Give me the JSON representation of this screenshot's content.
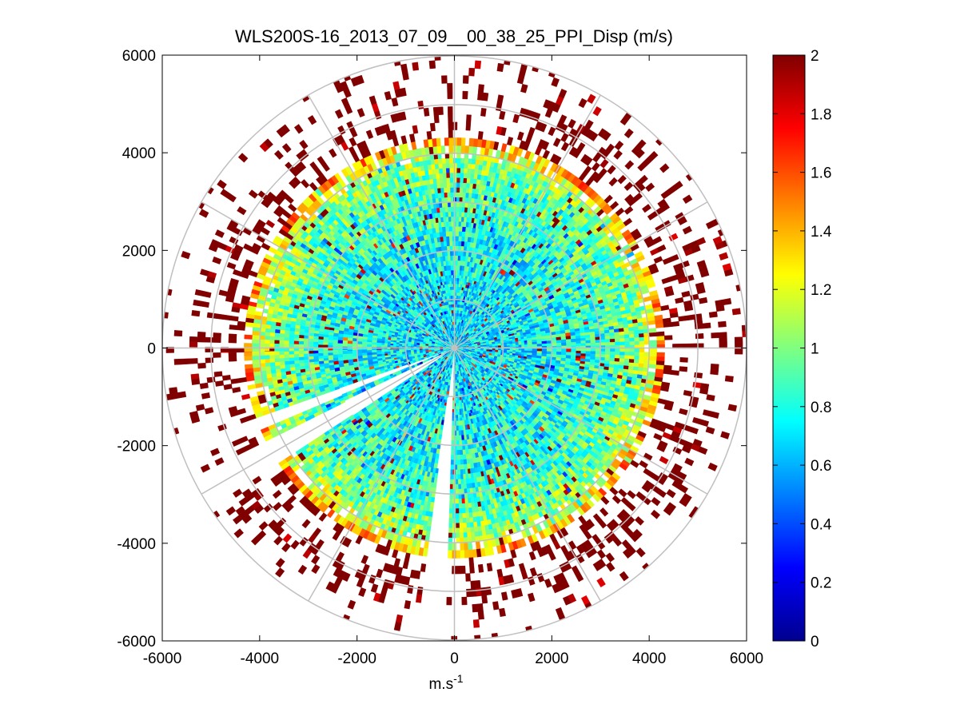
{
  "chart_data": {
    "type": "heatmap",
    "subtype": "polar-ppi",
    "title": "WLS200S-16_2013_07_09__00_38_25_PPI_Disp (m/s)",
    "xlabel_base": "m.s",
    "xlabel_sup": "-1",
    "ylabel": "",
    "xlim": [
      -6000,
      6000
    ],
    "ylim": [
      -6000,
      6000
    ],
    "xticks": [
      -6000,
      -4000,
      -2000,
      0,
      2000,
      4000,
      6000
    ],
    "yticks": [
      -6000,
      -4000,
      -2000,
      0,
      2000,
      4000,
      6000
    ],
    "xtick_labels": [
      "-6000",
      "-4000",
      "-2000",
      "0",
      "2000",
      "4000",
      "6000"
    ],
    "ytick_labels": [
      "-6000",
      "-4000",
      "-2000",
      "0",
      "2000",
      "4000",
      "6000"
    ],
    "polar_grid": {
      "ring_radii": [
        1000,
        2000,
        3000,
        4000,
        5000,
        6000
      ],
      "spoke_angles_deg": [
        0,
        30,
        60,
        90,
        120,
        150,
        180,
        210,
        240,
        270,
        300,
        330
      ],
      "color": "#c0c0c0"
    },
    "colorbar": {
      "colormap": "jet",
      "clim": [
        0,
        2
      ],
      "ticks": [
        0,
        0.2,
        0.4,
        0.6,
        0.8,
        1,
        1.2,
        1.4,
        1.6,
        1.8,
        2
      ],
      "tick_labels": [
        "0",
        "0.2",
        "0.4",
        "0.6",
        "0.8",
        "1",
        "1.2",
        "1.4",
        "1.6",
        "1.8",
        "2"
      ]
    },
    "field": {
      "description_of_pattern_only": "range-dependent dispersion",
      "range_bins_m": [
        0,
        500,
        1000,
        1500,
        2000,
        2500,
        3000,
        3500,
        4000,
        4500,
        5000,
        5500,
        6000
      ],
      "typical_value_by_range": [
        0.7,
        0.7,
        0.72,
        0.75,
        0.78,
        0.82,
        0.88,
        0.95,
        1.1,
        1.8,
        2.0,
        2.0,
        2.0
      ],
      "max_valid_range_m": 6000,
      "blank_sectors_deg": [
        [
          -98,
          -92
        ],
        [
          -154,
          -147
        ],
        [
          -161,
          -157
        ]
      ]
    }
  }
}
